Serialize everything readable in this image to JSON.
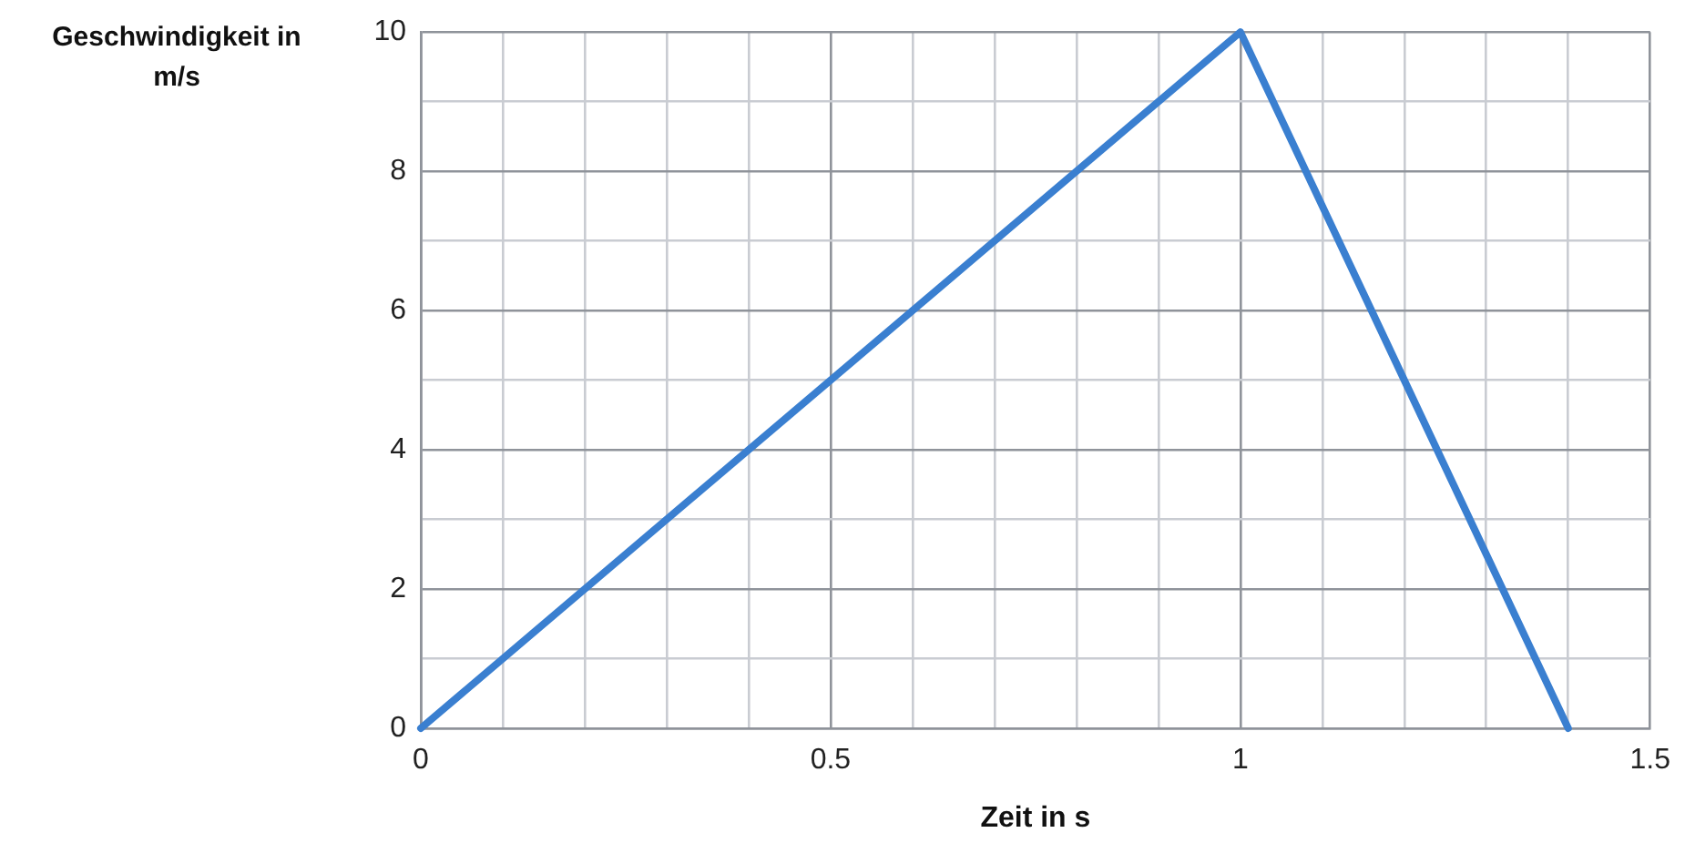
{
  "chart_data": {
    "type": "line",
    "xlabel": "Zeit in s",
    "ylabel": "Geschwindigkeit in m/s",
    "x": [
      0,
      1,
      1.4
    ],
    "series": [
      {
        "color": "#3a7fd0",
        "values": [
          0,
          10,
          0
        ]
      }
    ],
    "xlim": [
      0,
      1.5
    ],
    "xticks": [
      0,
      {
        "value": 0.1,
        "label": null
      },
      {
        "value": 0.2,
        "label": null
      },
      {
        "value": 0.3,
        "label": null
      },
      {
        "value": 0.4,
        "label": null
      },
      {
        "value": 0.5,
        "label": "0.5"
      },
      {
        "value": 0.6,
        "label": null
      },
      {
        "value": 0.7,
        "label": null
      },
      {
        "value": 0.8,
        "label": null
      },
      {
        "value": 0.9,
        "label": null
      },
      1,
      {
        "value": 1.1,
        "label": null
      },
      {
        "value": 1.2,
        "label": null
      },
      {
        "value": 1.3,
        "label": null
      },
      {
        "value": 1.4,
        "label": null
      },
      1.5
    ],
    "ylim": [
      0,
      10
    ],
    "yticks": [
      0,
      {
        "value": 1,
        "label": null
      },
      2,
      {
        "value": 3,
        "label": null
      },
      4,
      {
        "value": 5,
        "label": null
      },
      6,
      {
        "value": 7,
        "label": null
      },
      8,
      {
        "value": 9,
        "label": null
      },
      10
    ],
    "grid": true,
    "legend": false,
    "marker": "none",
    "line_style": "solid"
  }
}
